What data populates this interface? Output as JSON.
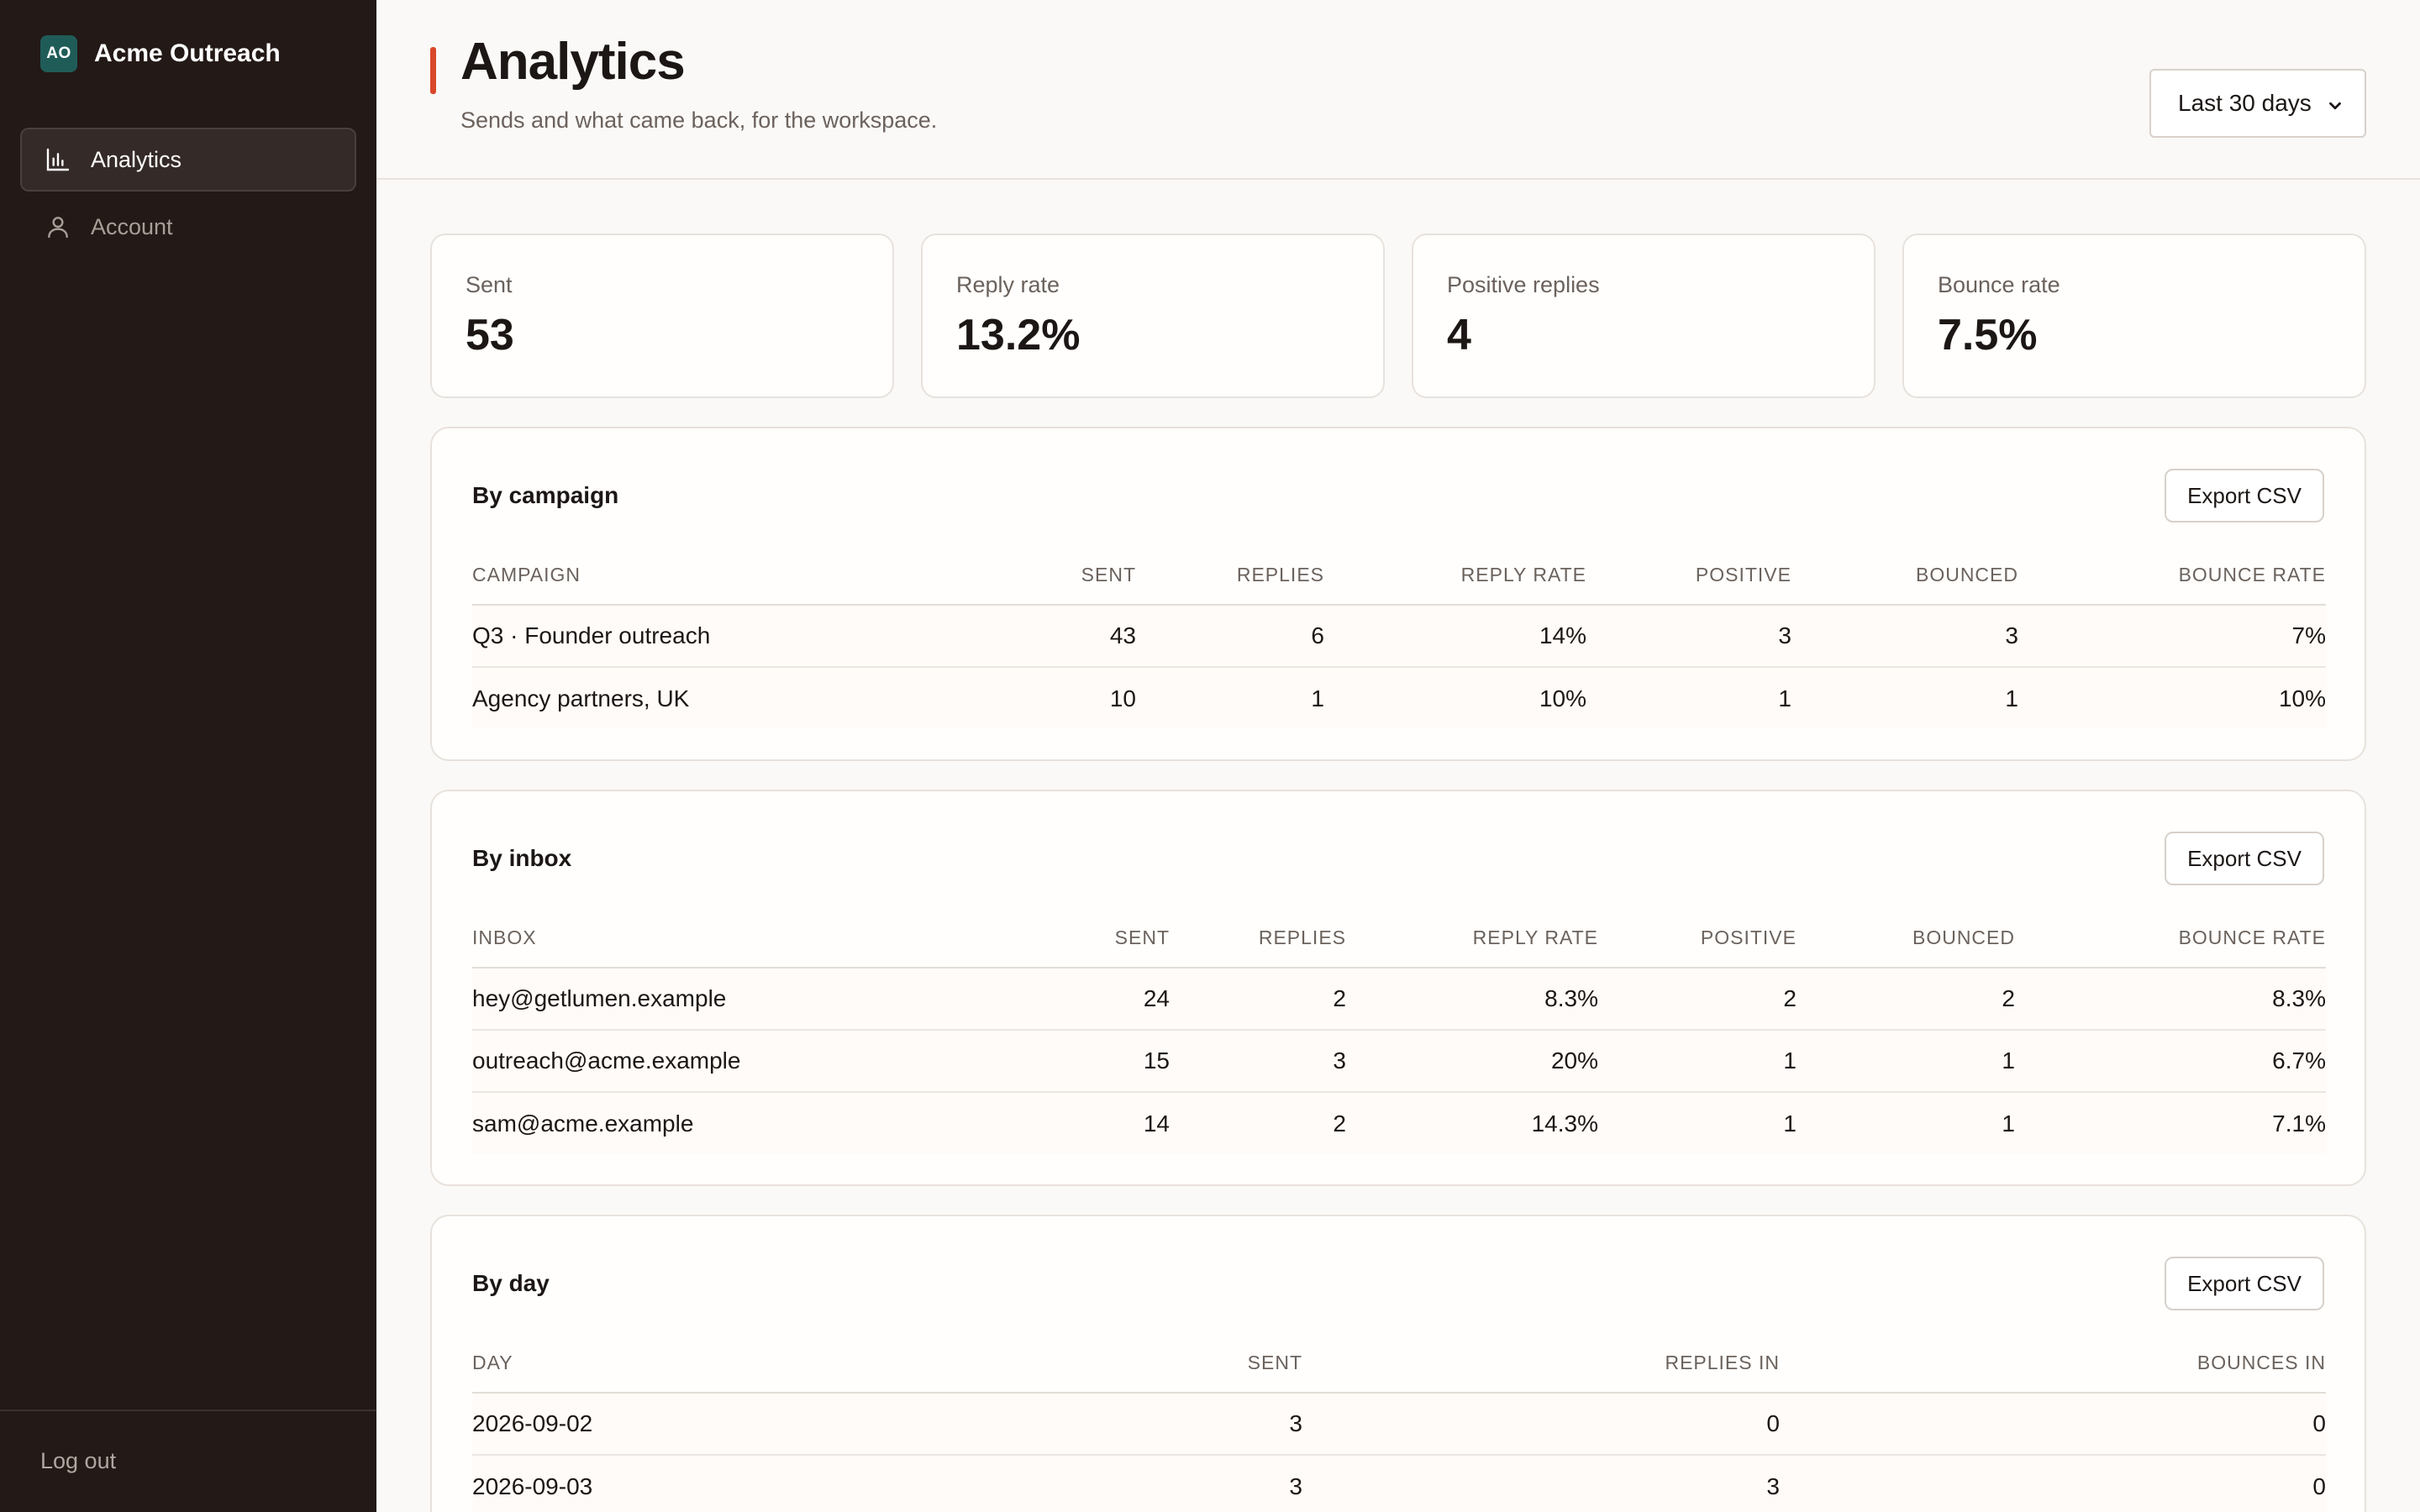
{
  "app": {
    "logo_text": "AO",
    "name": "Acme Outreach"
  },
  "sidebar": {
    "items": [
      {
        "label": "Analytics",
        "icon": "bar-chart-icon",
        "active": true
      },
      {
        "label": "Account",
        "icon": "user-icon",
        "active": false
      }
    ],
    "logout_label": "Log out"
  },
  "header": {
    "title": "Analytics",
    "subtitle": "Sends and what came back, for the workspace.",
    "range_select": "Last 30 days"
  },
  "stats": [
    {
      "label": "Sent",
      "value": "53"
    },
    {
      "label": "Reply rate",
      "value": "13.2%"
    },
    {
      "label": "Positive replies",
      "value": "4"
    },
    {
      "label": "Bounce rate",
      "value": "7.5%"
    }
  ],
  "export_label": "Export CSV",
  "by_campaign": {
    "title": "By campaign",
    "columns": [
      "CAMPAIGN",
      "SENT",
      "REPLIES",
      "REPLY RATE",
      "POSITIVE",
      "BOUNCED",
      "BOUNCE RATE"
    ],
    "rows": [
      [
        "Q3 · Founder outreach",
        "43",
        "6",
        "14%",
        "3",
        "3",
        "7%"
      ],
      [
        "Agency partners, UK",
        "10",
        "1",
        "10%",
        "1",
        "1",
        "10%"
      ]
    ]
  },
  "by_inbox": {
    "title": "By inbox",
    "columns": [
      "INBOX",
      "SENT",
      "REPLIES",
      "REPLY RATE",
      "POSITIVE",
      "BOUNCED",
      "BOUNCE RATE"
    ],
    "rows": [
      [
        "hey@getlumen.example",
        "24",
        "2",
        "8.3%",
        "2",
        "2",
        "8.3%"
      ],
      [
        "outreach@acme.example",
        "15",
        "3",
        "20%",
        "1",
        "1",
        "6.7%"
      ],
      [
        "sam@acme.example",
        "14",
        "2",
        "14.3%",
        "1",
        "1",
        "7.1%"
      ]
    ]
  },
  "by_day": {
    "title": "By day",
    "columns": [
      "DAY",
      "SENT",
      "REPLIES IN",
      "BOUNCES IN"
    ],
    "rows": [
      [
        "2026-09-02",
        "3",
        "0",
        "0"
      ],
      [
        "2026-09-03",
        "3",
        "3",
        "0"
      ]
    ]
  },
  "colors": {
    "sidebar_bg": "#231916",
    "accent": "#d9472b",
    "logo_bg": "#1f5c58",
    "page_bg": "#faf9f7"
  }
}
